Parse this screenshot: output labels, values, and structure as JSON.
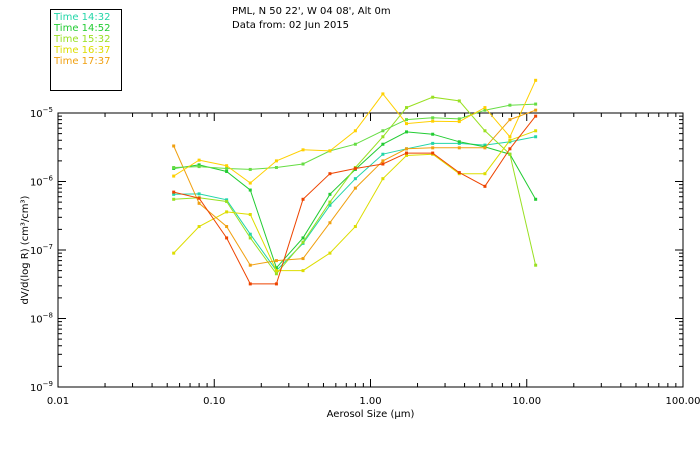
{
  "header": {
    "location": "PML, N 50 22', W 04 08', Alt 0m",
    "date": "Data from: 02 Jun 2015"
  },
  "chart_data": {
    "type": "line",
    "title": "PML, N 50 22', W 04 08', Alt 0m",
    "subtitle": "Data from: 02 Jun 2015",
    "xlabel": "Aerosol Size (μm)",
    "ylabel": "dV/d(log R) (cm³/cm³)",
    "xscale": "log",
    "yscale": "log",
    "xlim": [
      0.01,
      100
    ],
    "ylim": [
      1e-09,
      1e-05
    ],
    "x_tick_labels": [
      "0.01",
      "0.10",
      "1.00",
      "10.00",
      "100.00"
    ],
    "x_tick_values": [
      0.01,
      0.1,
      1,
      10,
      100
    ],
    "y_tick_values": [
      1e-09,
      1e-08,
      1e-07,
      1e-06,
      1e-05
    ],
    "y_tick_labels": [
      {
        "mantissa": "10",
        "exponent": "−9"
      },
      {
        "mantissa": "10",
        "exponent": "−8"
      },
      {
        "mantissa": "10",
        "exponent": "−7"
      },
      {
        "mantissa": "10",
        "exponent": "−6"
      },
      {
        "mantissa": "10",
        "exponent": "−5"
      }
    ],
    "x": [
      0.055,
      0.08,
      0.12,
      0.17,
      0.25,
      0.37,
      0.55,
      0.8,
      1.2,
      1.7,
      2.5,
      3.7,
      5.4,
      7.8,
      11.4
    ],
    "legend_position": "top-left",
    "series": [
      {
        "name": "Time 14:32",
        "color": "#22d6a8",
        "values": [
          6.5e-07,
          6.6e-07,
          5.4e-07,
          1.7e-07,
          5e-08,
          1.25e-07,
          4.5e-07,
          1.1e-06,
          2.5e-06,
          3e-06,
          3.6e-06,
          3.6e-06,
          3.4e-06,
          3.8e-06,
          4.5e-06
        ]
      },
      {
        "name": "Time 14:52",
        "color": "#22cc33",
        "values": [
          1.55e-06,
          1.75e-06,
          1.4e-06,
          7.5e-07,
          5.5e-08,
          1.5e-07,
          6.5e-07,
          1.5e-06,
          3.5e-06,
          5.3e-06,
          4.9e-06,
          3.8e-06,
          3.2e-06,
          2.5e-06,
          5.5e-07
        ]
      },
      {
        "name": "Time 15:32",
        "color": "#99e022",
        "values": [
          5.5e-07,
          5.8e-07,
          5.1e-07,
          1.5e-07,
          4.5e-08,
          1.3e-07,
          5e-07,
          1.6e-06,
          4.5e-06,
          1.2e-05,
          1.7e-05,
          1.5e-05,
          5.5e-06,
          2.5e-06,
          6e-08
        ]
      },
      {
        "name": "Time 16:37",
        "color": "#dddd00",
        "values": [
          9e-08,
          2.2e-07,
          3.6e-07,
          3.3e-07,
          5e-08,
          5e-08,
          9e-08,
          2.2e-07,
          1.1e-06,
          2.4e-06,
          2.5e-06,
          1.3e-06,
          1.3e-06,
          4e-06,
          5.5e-06
        ]
      },
      {
        "name": "Time 17:37",
        "color": "#f0a010",
        "values": [
          3.3e-06,
          4.8e-07,
          2.2e-07,
          6e-08,
          7e-08,
          7.5e-08,
          2.5e-07,
          8e-07,
          2e-06,
          3e-06,
          3.1e-06,
          3.1e-06,
          3.1e-06,
          8e-06,
          1.1e-05
        ]
      },
      {
        "name": "",
        "color": "#ee4400",
        "values": [
          7e-07,
          5.7e-07,
          1.5e-07,
          3.2e-08,
          3.2e-08,
          5.5e-07,
          1.3e-06,
          1.55e-06,
          1.8e-06,
          2.6e-06,
          2.6e-06,
          1.35e-06,
          8.5e-07,
          3e-06,
          9e-06
        ]
      },
      {
        "name": "",
        "color": "#66dd44",
        "values": [
          1.6e-06,
          1.65e-06,
          1.55e-06,
          1.5e-06,
          1.6e-06,
          1.8e-06,
          2.8e-06,
          3.5e-06,
          5.5e-06,
          8e-06,
          8.5e-06,
          8.2e-06,
          1.1e-05,
          1.3e-05,
          1.35e-05
        ]
      },
      {
        "name": "",
        "color": "#ffd000",
        "values": [
          1.2e-06,
          2.05e-06,
          1.7e-06,
          9.5e-07,
          2e-06,
          2.9e-06,
          2.8e-06,
          5.5e-06,
          1.9e-05,
          7e-06,
          7.6e-06,
          7.5e-06,
          1.2e-05,
          4.5e-06,
          3e-05
        ]
      }
    ]
  }
}
